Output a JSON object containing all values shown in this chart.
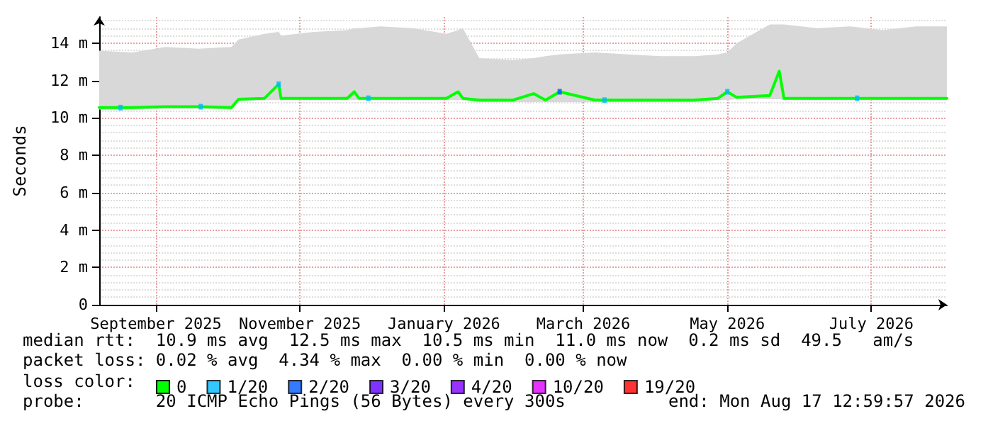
{
  "chart_data": {
    "type": "line",
    "ylabel": "Seconds",
    "legend_title": "loss color:",
    "annotations": [
      "median rtt:  10.9 ms avg  12.5 ms max  10.5 ms min  11.0 ms now  0.2 ms sd  49.5   am/s",
      "packet loss: 0.02 % avg  4.34 % max  0.00 % min  0.00 % now",
      "probe:       20 ICMP Echo Pings (56 Bytes) every 300s",
      "end: Mon Aug 17 12:59:57 2026"
    ],
    "xlim": [
      "2025-08-23",
      "2026-08-17"
    ],
    "xticks": [
      {
        "value": "2025-09-16",
        "label": "September 2025"
      },
      {
        "value": "2025-11-16",
        "label": "November 2025"
      },
      {
        "value": "2026-01-16",
        "label": "January 2026"
      },
      {
        "value": "2026-03-16",
        "label": "March 2026"
      },
      {
        "value": "2026-05-16",
        "label": "May 2026"
      },
      {
        "value": "2026-07-16",
        "label": "July 2026"
      }
    ],
    "ylim": [
      0,
      15.4
    ],
    "yticks": [
      0,
      {
        "value": 2,
        "label": "2 m"
      },
      {
        "value": 4,
        "label": "4 m"
      },
      {
        "value": 6,
        "label": "6 m"
      },
      {
        "value": 8,
        "label": "8 m"
      },
      {
        "value": 10,
        "label": "10 m"
      },
      {
        "value": 12,
        "label": "12 m"
      },
      {
        "value": 14,
        "label": "14 m"
      }
    ],
    "grid": true,
    "legend": "bottom",
    "line_style": "solid",
    "series": [
      {
        "name": "0",
        "color": "#00ff00",
        "x": [
          "2025-08-23",
          "2025-09-06",
          "2025-09-20",
          "2025-10-04",
          "2025-10-18",
          "2025-10-21",
          "2025-11-01",
          "2025-11-07",
          "2025-11-08",
          "2025-11-22",
          "2025-12-06",
          "2025-12-09",
          "2025-12-11",
          "2025-12-20",
          "2026-01-03",
          "2026-01-17",
          "2026-01-22",
          "2026-01-24",
          "2026-01-31",
          "2026-02-14",
          "2026-02-23",
          "2026-02-28",
          "2026-03-06",
          "2026-03-21",
          "2026-04-04",
          "2026-04-18",
          "2026-05-02",
          "2026-05-12",
          "2026-05-16",
          "2026-05-20",
          "2026-06-03",
          "2026-06-07",
          "2026-06-09",
          "2026-06-23",
          "2026-07-07",
          "2026-07-21",
          "2026-08-04",
          "2026-08-17"
        ],
        "values": [
          10.55,
          10.55,
          10.6,
          10.6,
          10.55,
          11.0,
          11.05,
          11.8,
          11.05,
          11.05,
          11.05,
          11.4,
          11.05,
          11.05,
          11.05,
          11.05,
          11.4,
          11.05,
          10.95,
          10.95,
          11.3,
          10.95,
          11.4,
          10.95,
          10.95,
          10.95,
          10.95,
          11.05,
          11.4,
          11.1,
          11.2,
          12.5,
          11.05,
          11.05,
          11.05,
          11.05,
          11.05,
          11.05
        ],
        "lower": [
          10.45,
          10.45,
          10.5,
          10.5,
          10.45,
          10.9,
          10.95,
          10.95,
          10.95,
          10.95,
          10.95,
          10.95,
          10.95,
          10.95,
          10.95,
          10.95,
          10.95,
          10.95,
          10.85,
          10.85,
          10.85,
          10.85,
          10.85,
          10.85,
          10.85,
          10.85,
          10.85,
          10.95,
          10.95,
          11.0,
          11.0,
          11.0,
          10.95,
          10.95,
          10.95,
          10.95,
          10.95,
          10.95
        ],
        "upper": [
          13.6,
          13.5,
          13.8,
          13.7,
          13.8,
          14.2,
          14.5,
          14.6,
          14.4,
          14.6,
          14.7,
          14.8,
          14.8,
          14.9,
          14.8,
          14.5,
          14.7,
          14.8,
          13.2,
          13.1,
          13.2,
          13.3,
          13.4,
          13.5,
          13.4,
          13.3,
          13.3,
          13.4,
          13.5,
          14.0,
          15.0,
          15.0,
          15.0,
          14.8,
          14.9,
          14.7,
          14.9,
          14.9
        ]
      },
      {
        "name": "1/20",
        "type": "scatter",
        "color": "#00b8ff",
        "x": [
          "2025-09-01",
          "2025-10-05",
          "2025-11-07",
          "2025-12-15",
          "2026-03-25",
          "2026-05-16",
          "2026-07-10"
        ],
        "values": [
          10.55,
          10.6,
          11.8,
          11.05,
          10.95,
          11.4,
          11.05
        ]
      },
      {
        "name": "2/20",
        "type": "scatter",
        "color": "#0059ff",
        "x": [
          "2026-03-06"
        ],
        "values": [
          11.4
        ]
      },
      {
        "name": "3/20",
        "type": "scatter",
        "color": "#5e00ff"
      },
      {
        "name": "4/20",
        "type": "scatter",
        "color": "#7e00ff"
      },
      {
        "name": "10/20",
        "type": "scatter",
        "color": "#dd00ff"
      },
      {
        "name": "19/20",
        "type": "scatter",
        "color": "#ff0000"
      }
    ]
  }
}
